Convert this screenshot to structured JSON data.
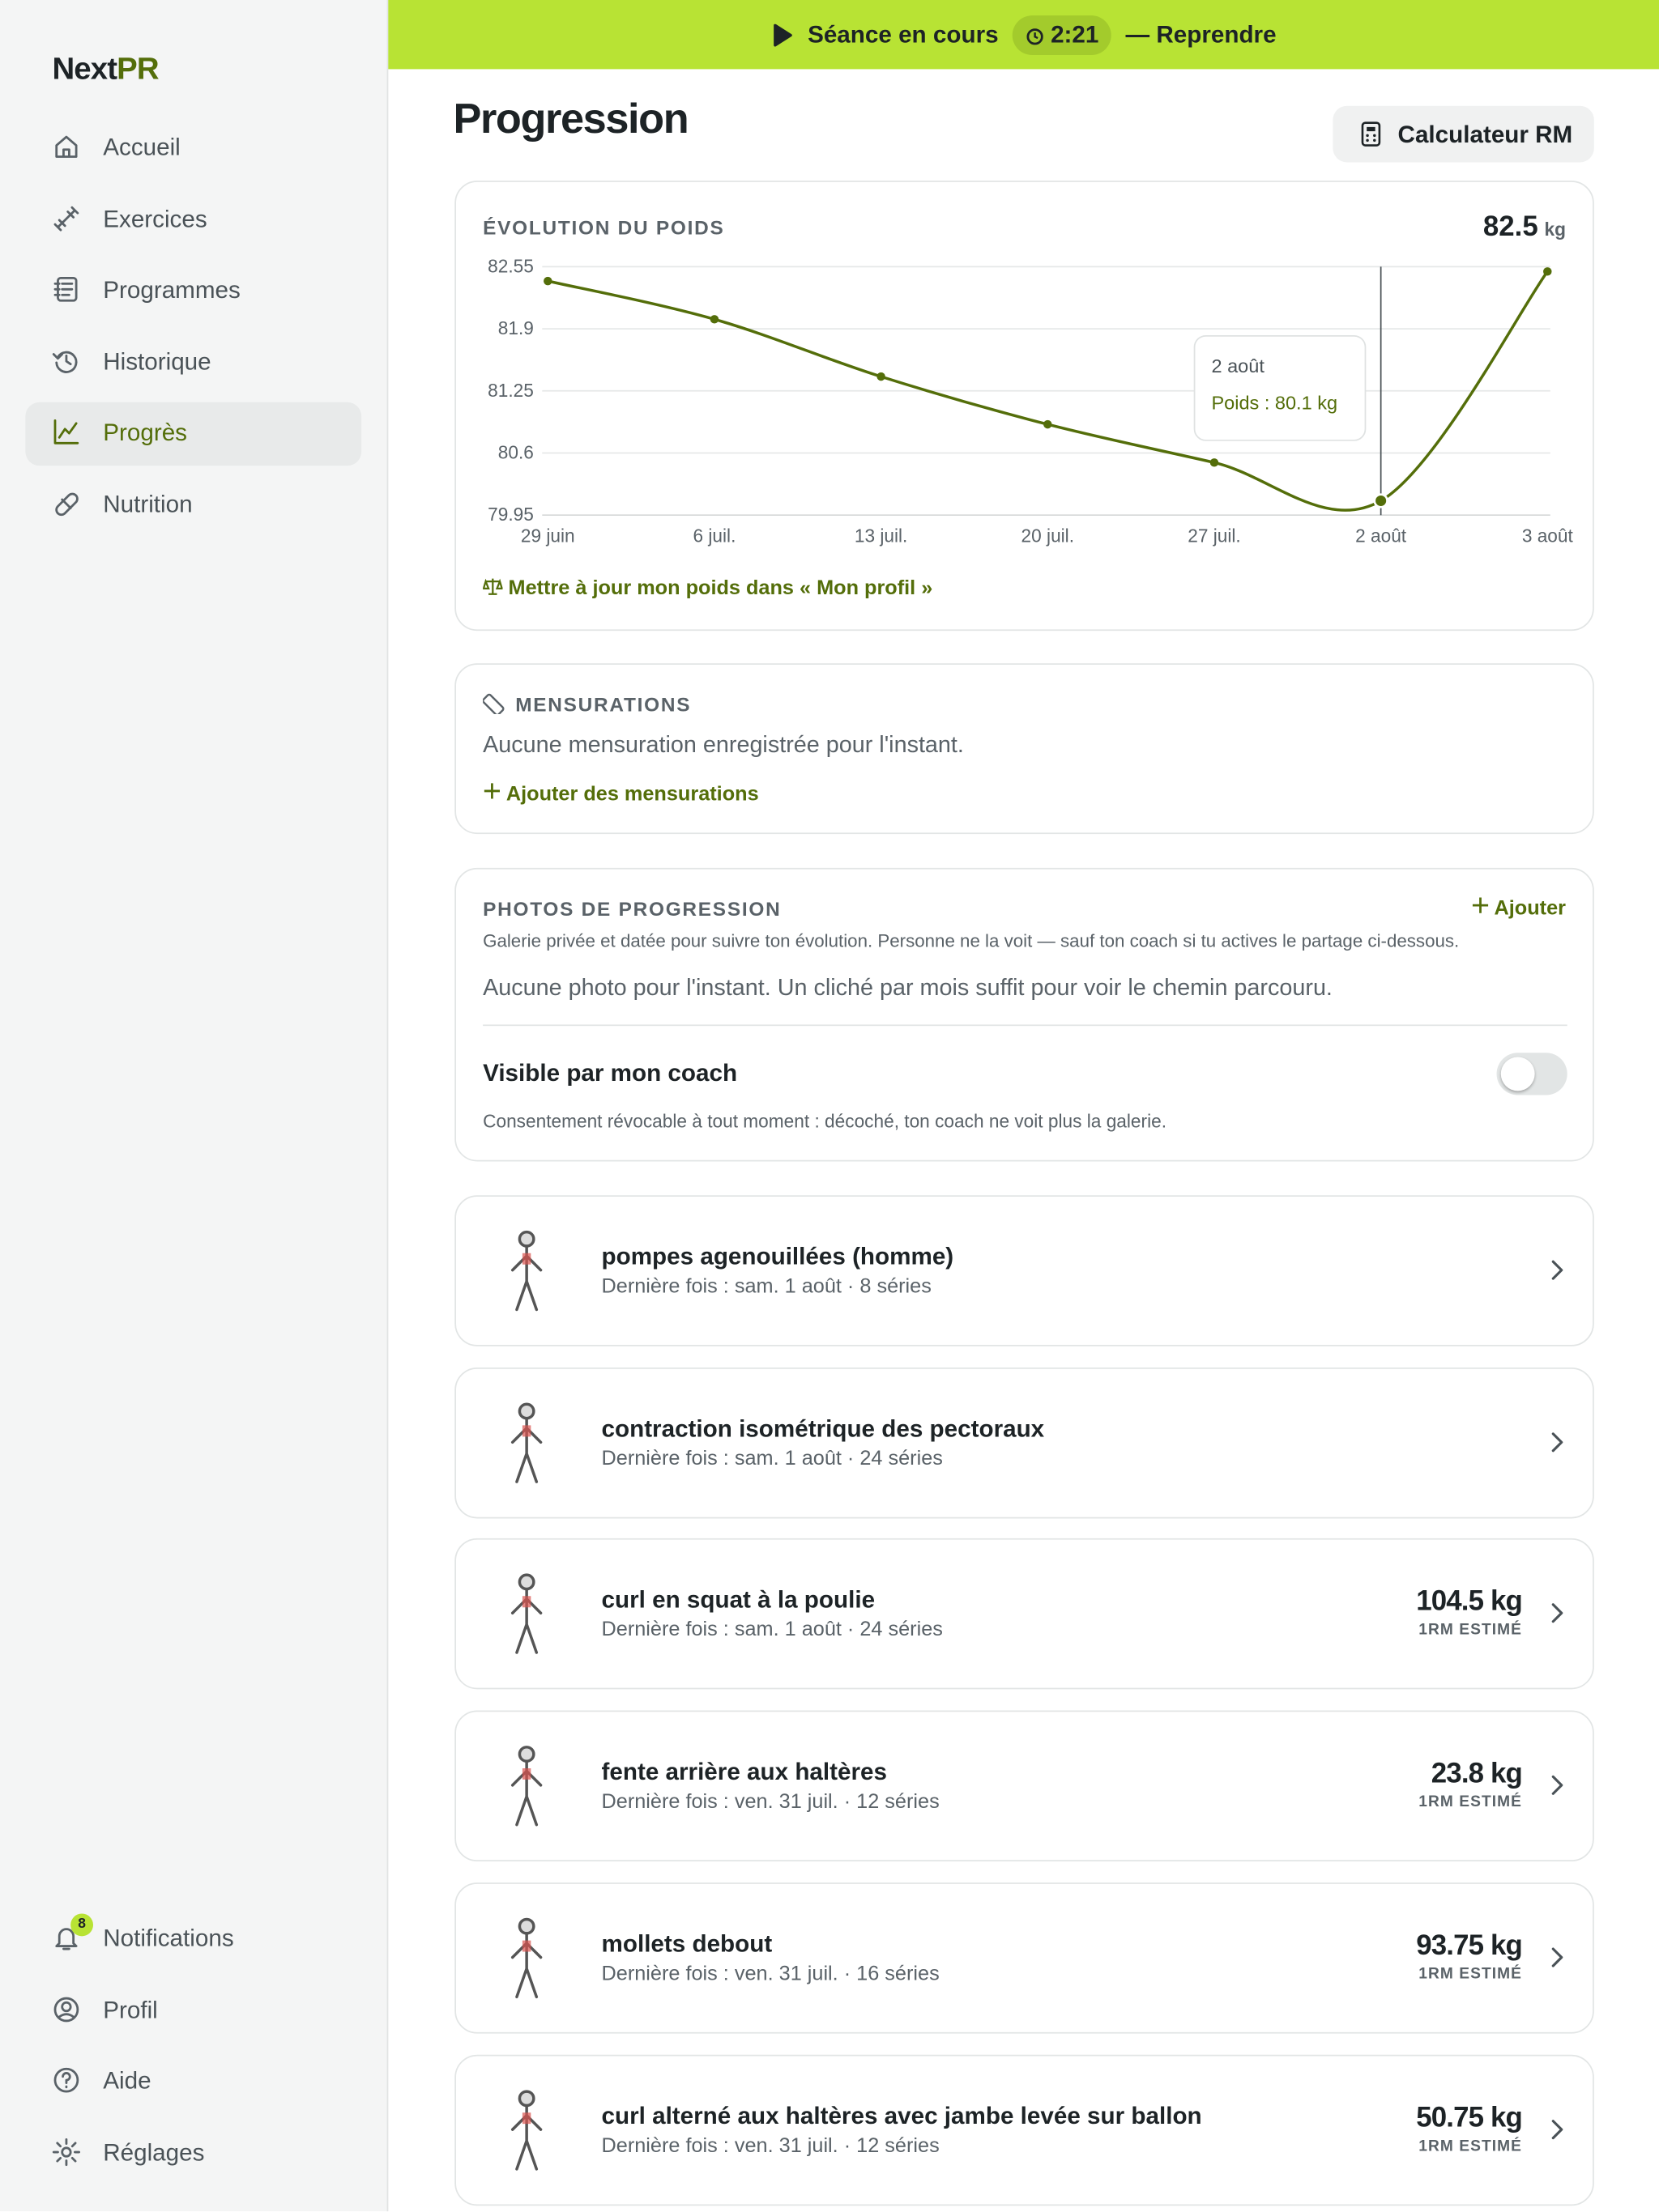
{
  "app": {
    "logo_main": "Next",
    "logo_accent": "PR"
  },
  "nav": [
    {
      "label": "Accueil"
    },
    {
      "label": "Exercices"
    },
    {
      "label": "Programmes"
    },
    {
      "label": "Historique"
    },
    {
      "label": "Progrès",
      "active": true
    },
    {
      "label": "Nutrition"
    }
  ],
  "nav_bottom": [
    {
      "label": "Notifications",
      "badge": 8
    },
    {
      "label": "Profil"
    },
    {
      "label": "Aide"
    },
    {
      "label": "Réglages"
    }
  ],
  "banner": {
    "status": "Séance en cours",
    "timer": "2:21",
    "action": "— Reprendre"
  },
  "page": {
    "title": "Progression",
    "rm_button": "Calculateur RM"
  },
  "chart_data": {
    "type": "line",
    "title": "ÉVOLUTION DU POIDS",
    "current_value": 82.5,
    "current_unit": "kg",
    "categories": [
      "29 juin",
      "6 juil.",
      "13 juil.",
      "20 juil.",
      "27 juil.",
      "2 août",
      "3 août"
    ],
    "values": [
      82.4,
      82.0,
      81.4,
      80.9,
      80.5,
      80.1,
      82.5
    ],
    "color": "#546e0a",
    "ylim": [
      79.95,
      82.55
    ],
    "yticks": [
      82.55,
      81.9,
      81.25,
      80.6,
      79.95
    ],
    "grid": true,
    "tooltip": {
      "title": "2 août",
      "text": "Poids : 80.1 kg"
    },
    "link": "Mettre à jour mon poids dans « Mon profil »"
  },
  "measurements": {
    "title": "MENSURATIONS",
    "empty": "Aucune mensuration enregistrée pour l'instant.",
    "add": "Ajouter des mensurations"
  },
  "photos": {
    "title": "PHOTOS DE PROGRESSION",
    "add": "Ajouter",
    "description": "Galerie privée et datée pour suivre ton évolution. Personne ne la voit — sauf ton coach si tu actives le partage ci-dessous.",
    "empty": "Aucune photo pour l'instant. Un cliché par mois suffit pour voir le chemin parcouru.",
    "coach_label": "Visible par mon coach",
    "coach_visible": false,
    "consent": "Consentement révocable à tout moment : décoché, ton coach ne voit plus la galerie."
  },
  "exercises": [
    {
      "name": "pompes agenouillées (homme)",
      "last_session": "Dernière fois : sam. 1 août · 8 séries"
    },
    {
      "name": "contraction isométrique des pectoraux",
      "last_session": "Dernière fois : sam. 1 août · 24 séries"
    },
    {
      "name": "curl en squat à la poulie",
      "last_session": "Dernière fois : sam. 1 août · 24 séries",
      "one_rm": 104.5,
      "unit": "kg",
      "one_rm_label": "1RM ESTIMÉ"
    },
    {
      "name": "fente arrière aux haltères",
      "last_session": "Dernière fois : ven. 31 juil. · 12 séries",
      "one_rm": 23.8,
      "unit": "kg",
      "one_rm_label": "1RM ESTIMÉ"
    },
    {
      "name": "mollets debout",
      "last_session": "Dernière fois : ven. 31 juil. · 16 séries",
      "one_rm": 93.75,
      "unit": "kg",
      "one_rm_label": "1RM ESTIMÉ"
    },
    {
      "name": "curl alterné aux haltères avec jambe levée sur ballon",
      "last_session": "Dernière fois : ven. 31 juil. · 12 séries",
      "one_rm": 50.75,
      "unit": "kg",
      "one_rm_label": "1RM ESTIMÉ"
    }
  ]
}
